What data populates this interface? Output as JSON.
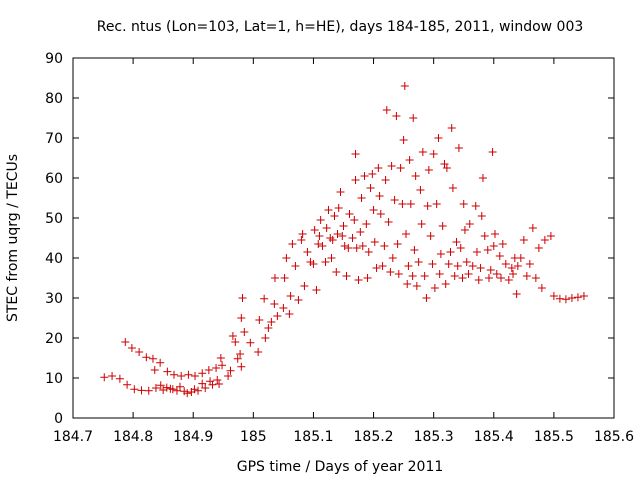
{
  "chart_data": {
    "type": "scatter",
    "title": "Rec. ntus (Lon=103, Lat=1, h=HE), days 184-185, 2011, window 003",
    "xlabel": "GPS time / Days of year 2011",
    "ylabel": "STEC from uqrg / TECUs",
    "xlim": [
      184.7,
      185.6
    ],
    "ylim": [
      0,
      90
    ],
    "xticks": [
      "184.7",
      "184.8",
      "184.9",
      "185",
      "185.1",
      "185.2",
      "185.3",
      "185.4",
      "185.5",
      "185.6"
    ],
    "yticks": [
      "0",
      "10",
      "20",
      "30",
      "40",
      "50",
      "60",
      "70",
      "80",
      "90"
    ],
    "grid": false,
    "marker": "plus",
    "color": "#cc0000",
    "points": [
      [
        184.752,
        10.2
      ],
      [
        184.765,
        10.5
      ],
      [
        184.778,
        9.8
      ],
      [
        184.787,
        19.0
      ],
      [
        184.798,
        17.5
      ],
      [
        184.81,
        16.5
      ],
      [
        184.822,
        15.2
      ],
      [
        184.833,
        14.8
      ],
      [
        184.845,
        13.8
      ],
      [
        184.857,
        11.6
      ],
      [
        184.868,
        10.8
      ],
      [
        184.88,
        10.5
      ],
      [
        184.892,
        10.8
      ],
      [
        184.903,
        10.5
      ],
      [
        184.915,
        11.2
      ],
      [
        184.926,
        12.0
      ],
      [
        184.938,
        12.5
      ],
      [
        184.948,
        13.2
      ],
      [
        184.79,
        8.3
      ],
      [
        184.802,
        7.2
      ],
      [
        184.814,
        6.9
      ],
      [
        184.826,
        6.8
      ],
      [
        184.838,
        7.5
      ],
      [
        184.85,
        7.0
      ],
      [
        184.862,
        7.3
      ],
      [
        184.873,
        6.8
      ],
      [
        184.885,
        6.7
      ],
      [
        184.897,
        6.5
      ],
      [
        184.908,
        6.8
      ],
      [
        184.92,
        7.5
      ],
      [
        184.932,
        8.3
      ],
      [
        184.943,
        8.5
      ],
      [
        184.836,
        12.0
      ],
      [
        184.846,
        8.2
      ],
      [
        184.856,
        7.6
      ],
      [
        184.866,
        7.2
      ],
      [
        184.878,
        7.8
      ],
      [
        184.89,
        6.2
      ],
      [
        184.902,
        7.2
      ],
      [
        184.915,
        8.6
      ],
      [
        184.928,
        9.2
      ],
      [
        184.94,
        9.5
      ],
      [
        184.946,
        15.0
      ],
      [
        184.958,
        10.5
      ],
      [
        184.962,
        11.8
      ],
      [
        184.966,
        20.5
      ],
      [
        184.97,
        19.0
      ],
      [
        184.974,
        14.8
      ],
      [
        184.978,
        16.0
      ],
      [
        184.98,
        12.8
      ],
      [
        184.98,
        25.0
      ],
      [
        184.982,
        30.0
      ],
      [
        184.985,
        21.5
      ],
      [
        184.995,
        18.8
      ],
      [
        185.008,
        16.5
      ],
      [
        185.01,
        24.5
      ],
      [
        185.02,
        20.0
      ],
      [
        185.025,
        22.5
      ],
      [
        185.018,
        29.8
      ],
      [
        185.03,
        24.0
      ],
      [
        185.035,
        28.5
      ],
      [
        185.036,
        35.0
      ],
      [
        185.04,
        25.5
      ],
      [
        185.05,
        27.5
      ],
      [
        185.052,
        35.0
      ],
      [
        185.055,
        40.0
      ],
      [
        185.06,
        26.0
      ],
      [
        185.062,
        30.5
      ],
      [
        185.065,
        43.5
      ],
      [
        185.07,
        38.0
      ],
      [
        185.075,
        29.5
      ],
      [
        185.08,
        44.5
      ],
      [
        185.082,
        46.0
      ],
      [
        185.085,
        33.0
      ],
      [
        185.09,
        41.5
      ],
      [
        185.095,
        39.0
      ],
      [
        185.1,
        38.5
      ],
      [
        185.102,
        47.0
      ],
      [
        185.105,
        32.0
      ],
      [
        185.108,
        43.5
      ],
      [
        185.11,
        45.5
      ],
      [
        185.112,
        49.5
      ],
      [
        185.115,
        43.0
      ],
      [
        185.12,
        39.0
      ],
      [
        185.122,
        47.5
      ],
      [
        185.125,
        52.0
      ],
      [
        185.128,
        45.0
      ],
      [
        185.13,
        40.0
      ],
      [
        185.132,
        44.5
      ],
      [
        185.135,
        50.5
      ],
      [
        185.138,
        36.5
      ],
      [
        185.14,
        46.0
      ],
      [
        185.142,
        52.5
      ],
      [
        185.145,
        56.5
      ],
      [
        185.148,
        45.5
      ],
      [
        185.15,
        48.0
      ],
      [
        185.152,
        43.0
      ],
      [
        185.155,
        35.5
      ],
      [
        185.158,
        42.5
      ],
      [
        185.16,
        51.0
      ],
      [
        185.165,
        45.0
      ],
      [
        185.168,
        49.5
      ],
      [
        185.17,
        59.5
      ],
      [
        185.17,
        66.0
      ],
      [
        185.172,
        42.5
      ],
      [
        185.175,
        34.5
      ],
      [
        185.178,
        46.5
      ],
      [
        185.18,
        55.0
      ],
      [
        185.182,
        43.0
      ],
      [
        185.185,
        60.5
      ],
      [
        185.188,
        48.5
      ],
      [
        185.19,
        35.0
      ],
      [
        185.192,
        41.5
      ],
      [
        185.195,
        57.5
      ],
      [
        185.198,
        61.0
      ],
      [
        185.2,
        52.0
      ],
      [
        185.202,
        44.0
      ],
      [
        185.205,
        37.5
      ],
      [
        185.208,
        62.5
      ],
      [
        185.21,
        55.5
      ],
      [
        185.212,
        51.0
      ],
      [
        185.215,
        38.0
      ],
      [
        185.218,
        43.0
      ],
      [
        185.22,
        59.5
      ],
      [
        185.222,
        77.0
      ],
      [
        185.225,
        49.0
      ],
      [
        185.228,
        36.5
      ],
      [
        185.23,
        63.0
      ],
      [
        185.232,
        40.0
      ],
      [
        185.235,
        54.5
      ],
      [
        185.238,
        75.5
      ],
      [
        185.24,
        43.5
      ],
      [
        185.242,
        36.0
      ],
      [
        185.245,
        62.5
      ],
      [
        185.248,
        53.5
      ],
      [
        185.25,
        69.5
      ],
      [
        185.252,
        83.0
      ],
      [
        185.254,
        46.0
      ],
      [
        185.256,
        33.5
      ],
      [
        185.258,
        38.0
      ],
      [
        185.26,
        64.5
      ],
      [
        185.262,
        53.5
      ],
      [
        185.265,
        35.5
      ],
      [
        185.266,
        75.0
      ],
      [
        185.268,
        42.0
      ],
      [
        185.27,
        60.5
      ],
      [
        185.272,
        33.0
      ],
      [
        185.275,
        39.0
      ],
      [
        185.278,
        57.0
      ],
      [
        185.28,
        48.5
      ],
      [
        185.282,
        66.5
      ],
      [
        185.285,
        35.5
      ],
      [
        185.288,
        30.0
      ],
      [
        185.29,
        53.0
      ],
      [
        185.292,
        62.0
      ],
      [
        185.295,
        45.5
      ],
      [
        185.298,
        38.5
      ],
      [
        185.3,
        66.0
      ],
      [
        185.302,
        32.5
      ],
      [
        185.305,
        53.5
      ],
      [
        185.308,
        70.0
      ],
      [
        185.31,
        36.0
      ],
      [
        185.312,
        41.0
      ],
      [
        185.315,
        48.0
      ],
      [
        185.318,
        63.5
      ],
      [
        185.32,
        33.5
      ],
      [
        185.322,
        62.5
      ],
      [
        185.325,
        38.5
      ],
      [
        185.328,
        41.5
      ],
      [
        185.33,
        72.5
      ],
      [
        185.332,
        57.5
      ],
      [
        185.335,
        35.5
      ],
      [
        185.338,
        44.0
      ],
      [
        185.34,
        38.0
      ],
      [
        185.342,
        67.5
      ],
      [
        185.345,
        42.5
      ],
      [
        185.348,
        35.0
      ],
      [
        185.35,
        53.5
      ],
      [
        185.352,
        47.0
      ],
      [
        185.355,
        39.0
      ],
      [
        185.358,
        36.0
      ],
      [
        185.36,
        48.5
      ],
      [
        185.365,
        38.0
      ],
      [
        185.37,
        53.0
      ],
      [
        185.372,
        41.5
      ],
      [
        185.375,
        34.5
      ],
      [
        185.378,
        37.5
      ],
      [
        185.38,
        50.5
      ],
      [
        185.382,
        60.0
      ],
      [
        185.385,
        45.5
      ],
      [
        185.39,
        42.0
      ],
      [
        185.392,
        35.0
      ],
      [
        185.395,
        37.0
      ],
      [
        185.398,
        66.5
      ],
      [
        185.4,
        43.0
      ],
      [
        185.402,
        46.0
      ],
      [
        185.405,
        36.0
      ],
      [
        185.41,
        40.5
      ],
      [
        185.412,
        35.0
      ],
      [
        185.415,
        43.5
      ],
      [
        185.42,
        38.5
      ],
      [
        185.425,
        34.5
      ],
      [
        185.43,
        37.5
      ],
      [
        185.432,
        36.0
      ],
      [
        185.435,
        40.0
      ],
      [
        185.438,
        31.0
      ],
      [
        185.44,
        38.0
      ],
      [
        185.445,
        40.0
      ],
      [
        185.45,
        44.5
      ],
      [
        185.455,
        35.5
      ],
      [
        185.46,
        38.5
      ],
      [
        185.465,
        47.5
      ],
      [
        185.47,
        35.0
      ],
      [
        185.475,
        42.5
      ],
      [
        185.48,
        32.5
      ],
      [
        185.485,
        44.5
      ],
      [
        185.495,
        45.5
      ],
      [
        185.5,
        30.5
      ],
      [
        185.51,
        29.8
      ],
      [
        185.52,
        29.7
      ],
      [
        185.53,
        30.0
      ],
      [
        185.54,
        30.2
      ],
      [
        185.55,
        30.5
      ]
    ]
  }
}
